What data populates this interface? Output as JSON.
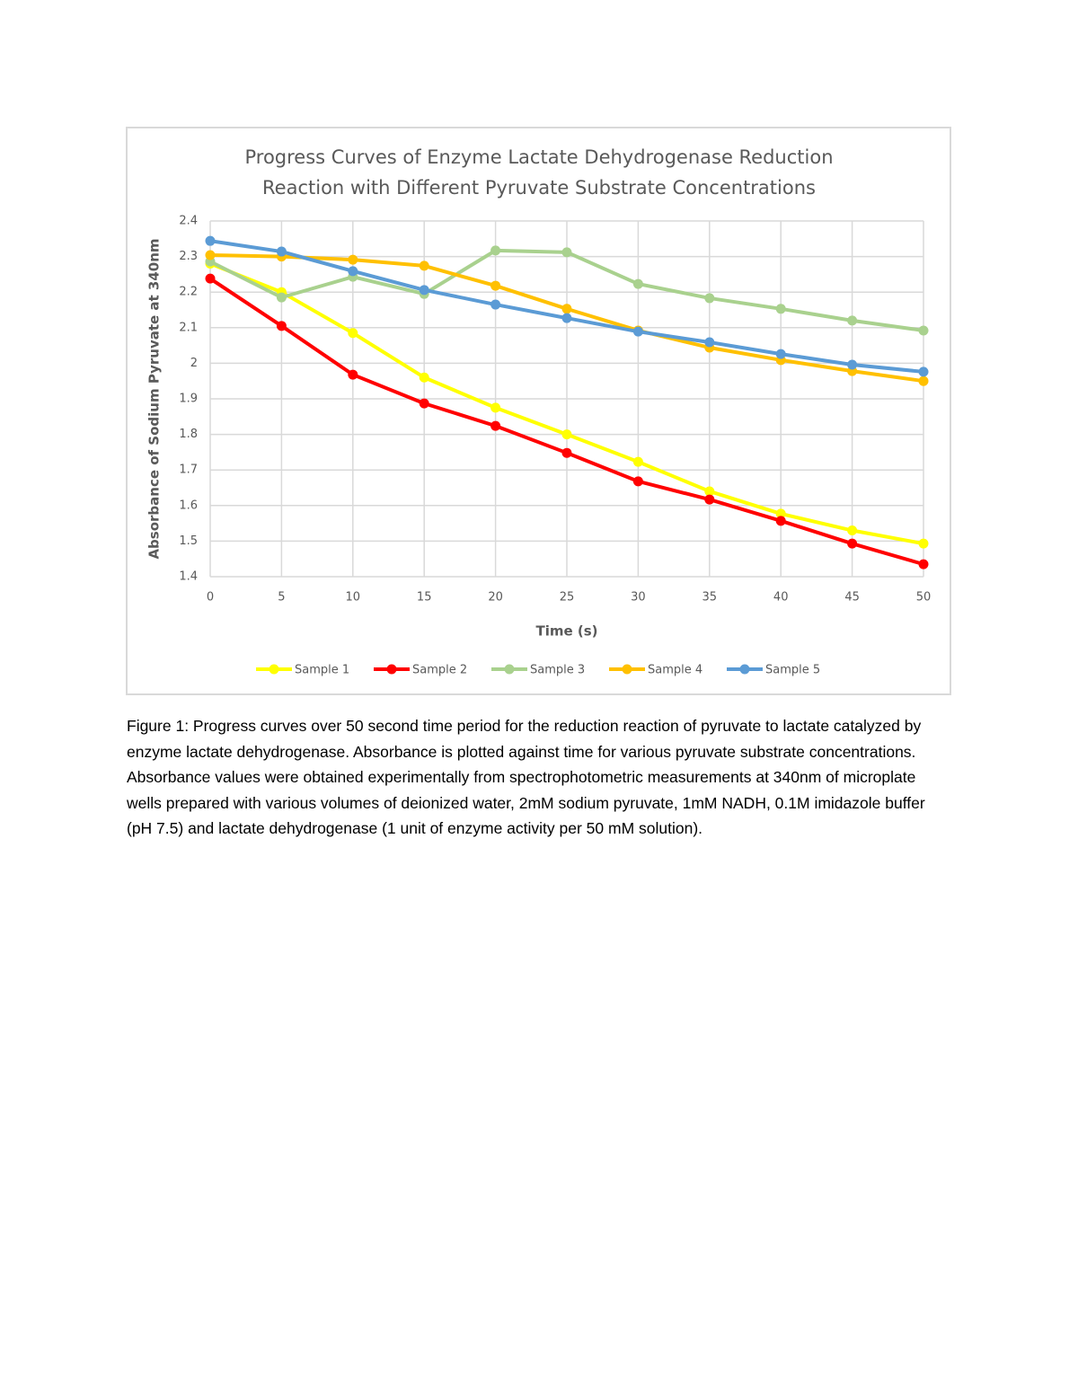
{
  "chart_data": {
    "type": "line",
    "title": "Progress Curves of Enzyme Lactate Dehydrogenase Reduction Reaction with Different Pyruvate Substrate Concentrations",
    "x_label": "Time (s)",
    "y_label": "Absorbance of Sodium Pyruvate at  340nm",
    "x": [
      0,
      5,
      10,
      15,
      20,
      25,
      30,
      35,
      40,
      45,
      50
    ],
    "series": [
      {
        "name": "Sample 1",
        "color": "#ffff00",
        "values": [
          2.28,
          2.2,
          2.085,
          1.96,
          1.875,
          1.8,
          1.723,
          1.64,
          1.577,
          1.53,
          1.493
        ]
      },
      {
        "name": "Sample 2",
        "color": "#ff0000",
        "values": [
          2.238,
          2.105,
          1.968,
          1.887,
          1.824,
          1.748,
          1.668,
          1.617,
          1.557,
          1.493,
          1.435
        ]
      },
      {
        "name": "Sample 3",
        "color": "#a9d18e",
        "values": [
          2.286,
          2.185,
          2.243,
          2.195,
          2.317,
          2.312,
          2.223,
          2.183,
          2.153,
          2.12,
          2.092
        ]
      },
      {
        "name": "Sample 4",
        "color": "#ffc000",
        "values": [
          2.304,
          2.3,
          2.291,
          2.274,
          2.218,
          2.153,
          2.092,
          2.044,
          2.009,
          1.978,
          1.95
        ]
      },
      {
        "name": "Sample 5",
        "color": "#5b9bd5",
        "values": [
          2.344,
          2.314,
          2.259,
          2.206,
          2.165,
          2.127,
          2.089,
          2.059,
          2.026,
          1.996,
          1.976
        ]
      }
    ],
    "xlim": [
      0,
      50
    ],
    "xticks": [
      0,
      5,
      10,
      15,
      20,
      25,
      30,
      35,
      40,
      45,
      50
    ],
    "ylim": [
      1.4,
      2.4
    ],
    "yticks": [
      1.4,
      1.5,
      1.6,
      1.7,
      1.8,
      1.9,
      2,
      2.1,
      2.2,
      2.3,
      2.4
    ],
    "grid": true,
    "legend": "bottom"
  },
  "caption": "Figure 1: Progress curves over 50 second time period for the reduction reaction of pyruvate to lactate catalyzed by enzyme lactate dehydrogenase. Absorbance is plotted against time for various pyruvate substrate concentrations. Absorbance values were obtained experimentally from spectrophotometric measurements at 340nm of microplate wells prepared with various volumes of deionized water, 2mM sodium pyruvate, 1mM NADH, 0.1M imidazole buffer (pH 7.5) and lactate dehydrogenase (1 unit of enzyme activity per 50 mM solution)."
}
